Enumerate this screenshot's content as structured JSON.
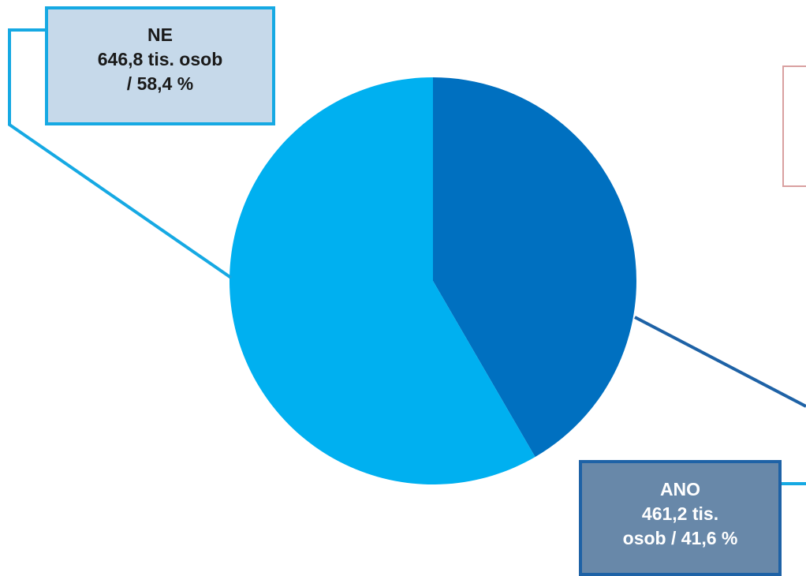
{
  "chart_data": {
    "type": "pie",
    "title": "",
    "slices": [
      {
        "label": "ANO",
        "value": 461.2,
        "percent": 41.6,
        "color": "#0070c0"
      },
      {
        "label": "NE",
        "value": 646.8,
        "percent": 58.4,
        "color": "#00b0f0"
      }
    ]
  },
  "labels": {
    "ne": {
      "category": "NE",
      "line1": "646,8 tis. osob",
      "line2": "/ 58,4 %"
    },
    "ano": {
      "category": "ANO",
      "line1": "461,2 tis.",
      "line2": "osob / 41,6 %"
    }
  },
  "colors": {
    "ne_leader": "#16a9e3",
    "ano_leader": "#1e62a6",
    "ne_box_bg": "#c6d9ea",
    "ano_box_bg": "#6888a9"
  }
}
